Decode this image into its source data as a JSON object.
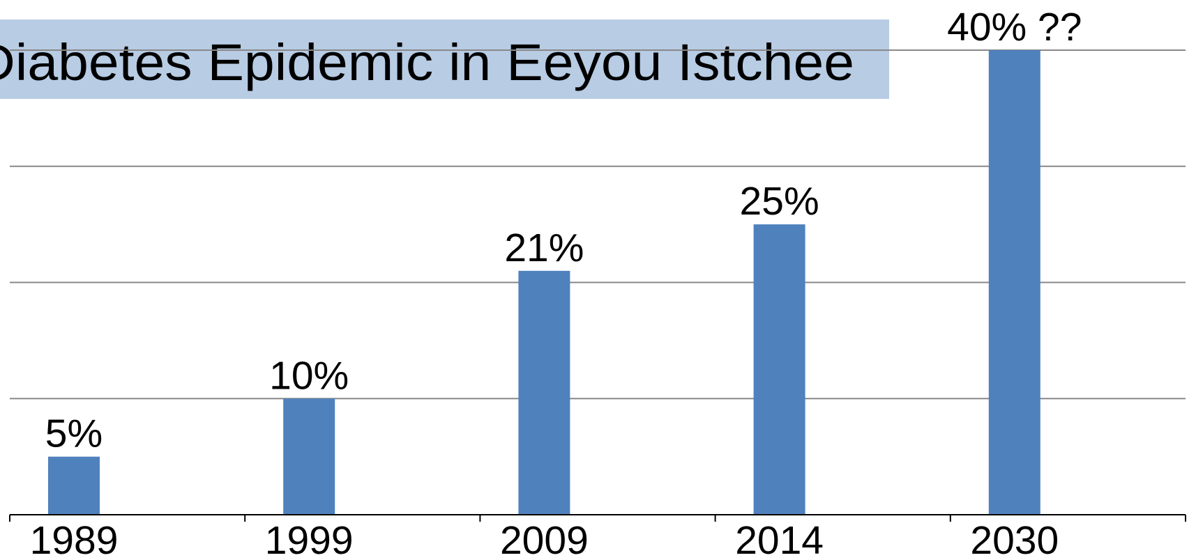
{
  "chart_data": {
    "type": "bar",
    "title": "Diabetes Epidemic in Eeyou Istchee",
    "categories": [
      "1989",
      "1999",
      "2009",
      "2014",
      "2030"
    ],
    "values": [
      5,
      10,
      21,
      25,
      40
    ],
    "value_labels": [
      "5%",
      "10%",
      "21%",
      "25%",
      "40% ??"
    ],
    "color": "#4f81bd",
    "ylim": [
      0,
      40
    ],
    "yticks": [
      0,
      10,
      20,
      30,
      40
    ],
    "grid": true
  }
}
